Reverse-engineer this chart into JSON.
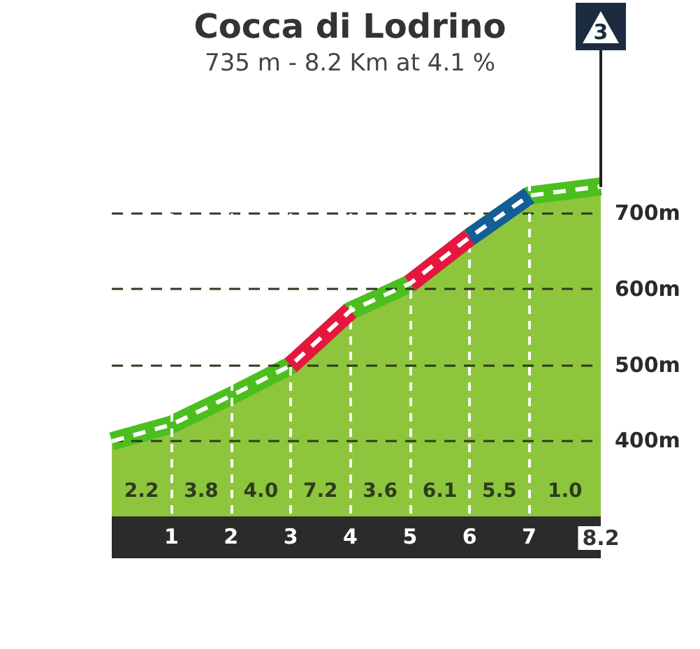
{
  "chart_data": {
    "type": "line",
    "title": "Cocca di Lodrino",
    "subtitle": "735 m - 8.2 Km at 4.1 %",
    "x": [
      0,
      1,
      2,
      3,
      4,
      5,
      6,
      7,
      8.2
    ],
    "series": [
      {
        "type": "area",
        "color": "#8dc63c",
        "values": [
          399,
          421,
          459,
          499,
          571,
          607,
          668,
          723,
          735
        ]
      },
      {
        "color": "#e5173f",
        "x": [
          3,
          4
        ],
        "values": [
          499,
          571
        ]
      },
      {
        "color": "#e5173f",
        "x": [
          5,
          6
        ],
        "values": [
          607,
          668
        ]
      },
      {
        "color": "#135e96",
        "x": [
          6,
          7
        ],
        "values": [
          668,
          723
        ]
      }
    ],
    "xlim": [
      0,
      8.2
    ],
    "xticks": [
      1,
      2,
      3,
      4,
      5,
      6,
      7,
      8.2
    ],
    "ylim": [
      300,
      760
    ],
    "yticks": [
      {
        "value": 400,
        "label": "400m"
      },
      {
        "value": 500,
        "label": "500m"
      },
      {
        "value": 600,
        "label": "600m"
      },
      {
        "value": 700,
        "label": "700m"
      }
    ],
    "grid": true,
    "annotations": [
      "3",
      "2.2",
      "3.8",
      "4.0",
      "7.2",
      "3.6",
      "6.1",
      "5.5",
      "1.0"
    ]
  }
}
